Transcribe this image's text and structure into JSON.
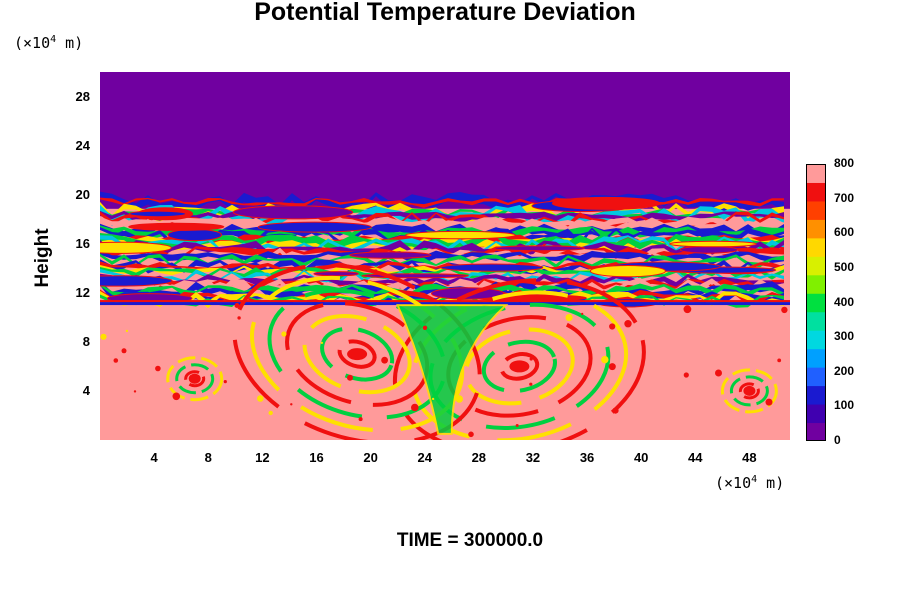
{
  "chart_data": {
    "type": "heatmap",
    "title": "Potential Temperature Deviation",
    "ylabel": "Height",
    "xlabel": "",
    "y_unit": "(×10",
    "x_unit": "(×10",
    "unit_exponent": "4",
    "unit_suffix": " m)",
    "xlim": [
      0,
      51
    ],
    "ylim": [
      0,
      30
    ],
    "x_ticks": [
      "4",
      "8",
      "12",
      "16",
      "20",
      "24",
      "28",
      "32",
      "36",
      "40",
      "44",
      "48"
    ],
    "y_ticks": [
      "4",
      "8",
      "12",
      "16",
      "20",
      "24",
      "28"
    ],
    "colorbar": {
      "min": 0,
      "max": 800,
      "ticks": [
        "0",
        "100",
        "200",
        "300",
        "400",
        "500",
        "600",
        "700",
        "800"
      ],
      "colors": [
        "#7000a0",
        "#4000b0",
        "#1a1ad0",
        "#2060ff",
        "#00a0ff",
        "#00d8e0",
        "#00e0a0",
        "#00e040",
        "#80f000",
        "#d8f000",
        "#ffd800",
        "#ff9000",
        "#ff4000",
        "#f01010",
        "#ff9a9a"
      ]
    },
    "regions": [
      {
        "name": "upper layer",
        "y_range": [
          19.5,
          30
        ],
        "value": 0
      },
      {
        "name": "mixed layered band",
        "y_range": [
          11,
          19.5
        ],
        "value_range": [
          0,
          800
        ]
      },
      {
        "name": "lower layer with vortices",
        "y_range": [
          0,
          11
        ],
        "value_range": [
          600,
          800
        ]
      }
    ],
    "vortices": [
      {
        "center_x": 31,
        "center_y": 6,
        "value": 700
      },
      {
        "center_x": 19,
        "center_y": 7,
        "value": 700
      },
      {
        "center_x": 7,
        "center_y": 5,
        "value": 700
      },
      {
        "center_x": 48,
        "center_y": 4,
        "value": 700
      }
    ]
  },
  "footer": {
    "time_label": "TIME = 300000.0"
  },
  "colors": {
    "background": "#ffffff",
    "upper": "#7000a0",
    "lower": "#ff9a9a",
    "red": "#f01010",
    "yellow": "#ffe000",
    "green": "#00d040",
    "blue": "#1a1ad0",
    "cyan": "#00c8e0"
  }
}
